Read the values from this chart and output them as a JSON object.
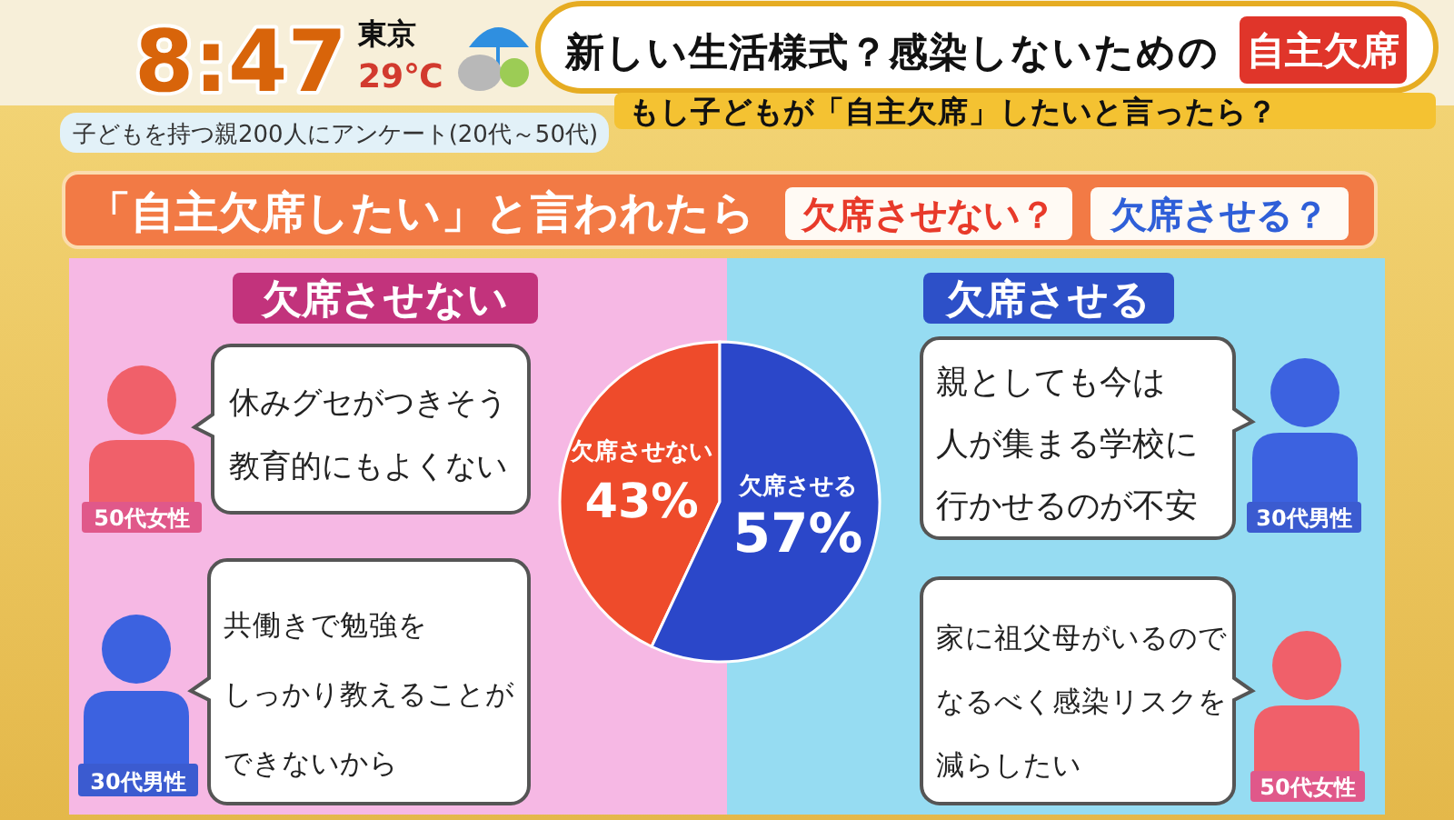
{
  "chart_data": {
    "type": "pie",
    "title": "新しい生活様式？感染しないための",
    "subtitle": "もし子どもが「自主欠席」したいと言ったら？",
    "categories": [
      "欠席させない",
      "欠席させる"
    ],
    "values": [
      43,
      57
    ],
    "colors": [
      "#ee4b2b",
      "#2b47c9"
    ],
    "value_labels": [
      "43%",
      "57%"
    ],
    "annotations": [
      "自主欠席",
      "8:47",
      "東京",
      "29℃",
      "子どもを持つ親200人にアンケート(20代～50代)",
      "「自主欠席したい」と言われたら",
      "欠席させない？",
      "欠席させる？",
      "欠席させない",
      "欠席させる",
      "休みグセがつきそう",
      "教育的にもよくない",
      "50代女性",
      "共働きで勉強を",
      "しっかり教えることが",
      "できないから",
      "30代男性",
      "親としても今は",
      "人が集まる学校に",
      "行かせるのが不安",
      "30代男性",
      "家に祖父母がいるので",
      "なるべく感染リスクを",
      "減らしたい",
      "50代女性"
    ]
  }
}
